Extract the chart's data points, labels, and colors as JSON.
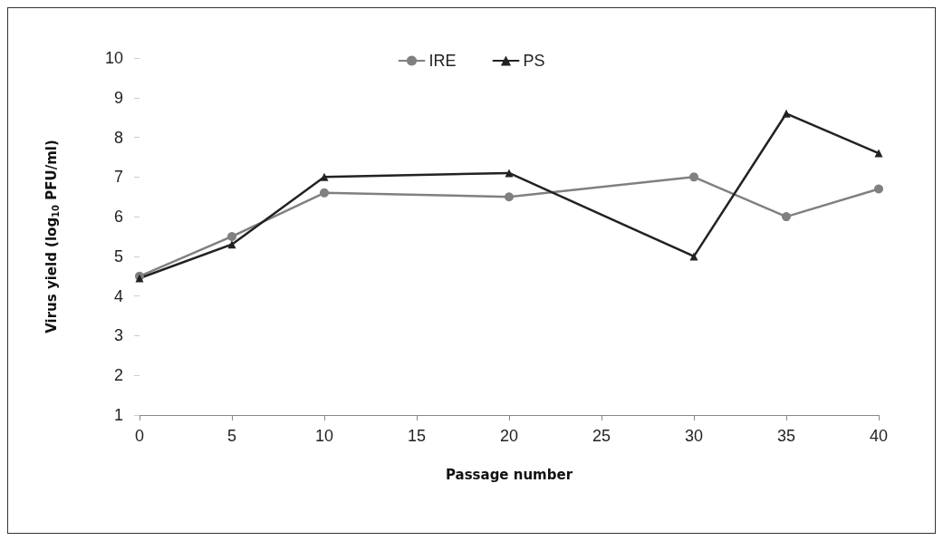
{
  "chart_data": {
    "type": "line",
    "xlabel": "Passage number",
    "ylabel": "Virus yield (log$_{10}$ PFU/ml)",
    "xlim": [
      0,
      40
    ],
    "xticks": [
      0,
      5,
      10,
      15,
      20,
      25,
      30,
      35,
      40
    ],
    "ylim": [
      1,
      10
    ],
    "yticks": [
      1,
      2,
      3,
      4,
      5,
      6,
      7,
      8,
      9,
      10
    ],
    "grid": false,
    "legend": "top",
    "line_style": "solid",
    "series": [
      {
        "name": "IRE",
        "color": "#808080",
        "marker": "circle",
        "x": [
          0,
          5,
          10,
          20,
          30,
          35,
          40
        ],
        "values": [
          4.5,
          5.5,
          6.6,
          6.5,
          7.0,
          6.0,
          6.7
        ]
      },
      {
        "name": "PS",
        "color": "#222222",
        "marker": "triangle",
        "x": [
          0,
          5,
          10,
          20,
          30,
          35,
          40
        ],
        "values": [
          4.45,
          5.3,
          7.0,
          7.1,
          5.0,
          8.6,
          7.6
        ]
      }
    ]
  }
}
